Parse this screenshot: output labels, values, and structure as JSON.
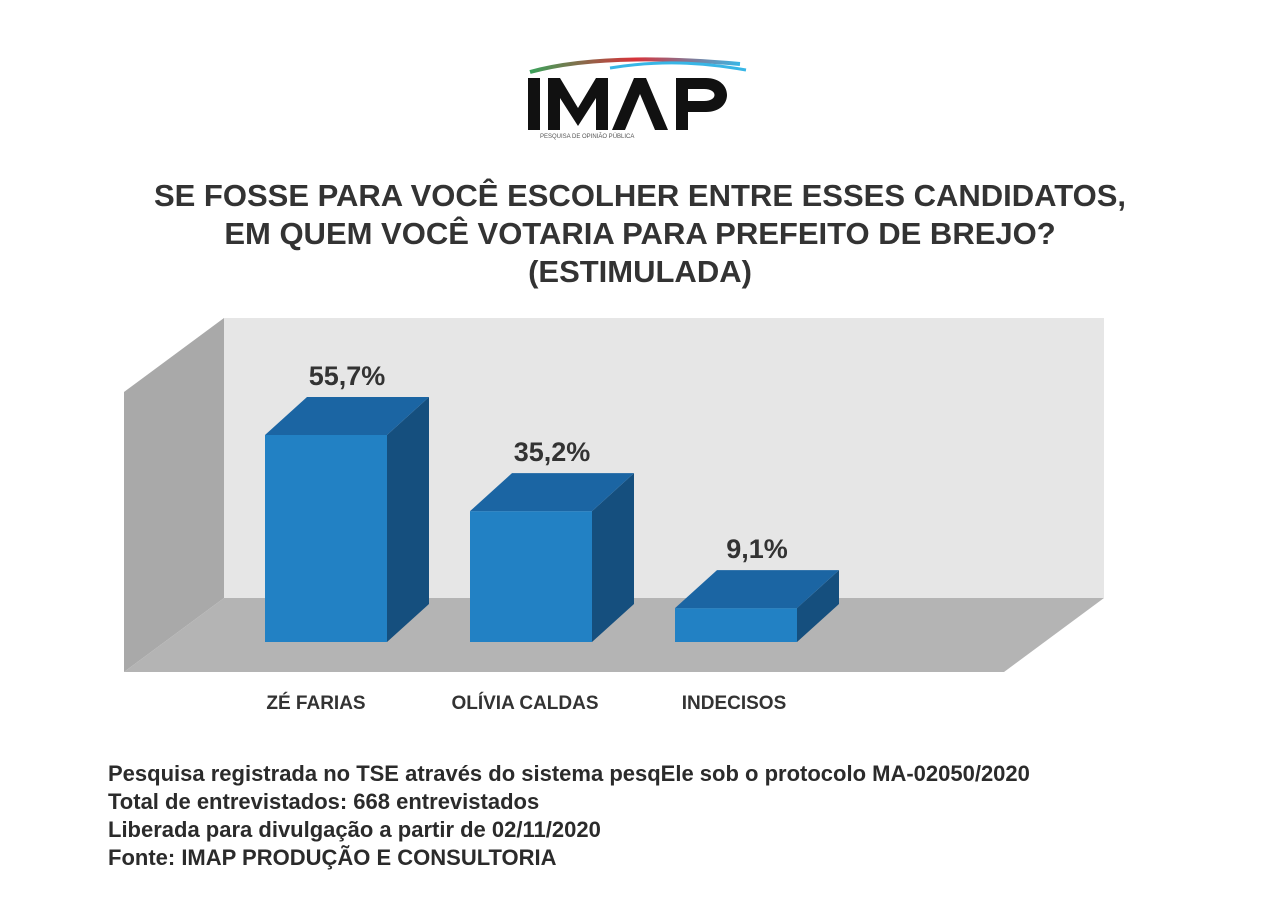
{
  "logo": {
    "name": "IMAP",
    "tagline": "PESQUISA DE OPINIÃO PÚBLICA"
  },
  "title": {
    "line1": "SE FOSSE PARA VOCÊ ESCOLHER ENTRE ESSES CANDIDATOS,",
    "line2": "EM QUEM VOCÊ VOTARIA PARA PREFEITO DE BREJO?",
    "line3": "(ESTIMULADA)"
  },
  "chart_data": {
    "type": "bar",
    "categories": [
      "ZÉ FARIAS",
      "OLÍVIA CALDAS",
      "INDECISOS"
    ],
    "values": [
      55.7,
      35.2,
      9.1
    ],
    "value_labels": [
      "55,7%",
      "35,2%",
      "9,1%"
    ],
    "unit": "%",
    "ylim": [
      0,
      70
    ],
    "style": "3d-column",
    "grid": false,
    "legend": "none",
    "colors": {
      "bar_front": "#2281C4",
      "bar_side": "#154F7E",
      "bar_top": "#1B65A3",
      "back_wall": "#E6E6E6",
      "side_wall": "#A9A9A9",
      "floor": "#B4B4B4"
    }
  },
  "footer": {
    "line1": "Pesquisa registrada no TSE através do sistema pesqEle sob o protocolo MA-02050/2020",
    "line2": "Total de entrevistados: 668 entrevistados",
    "line3": "Liberada para divulgação a partir de 02/11/2020",
    "line4": "Fonte: IMAP PRODUÇÃO E CONSULTORIA"
  }
}
